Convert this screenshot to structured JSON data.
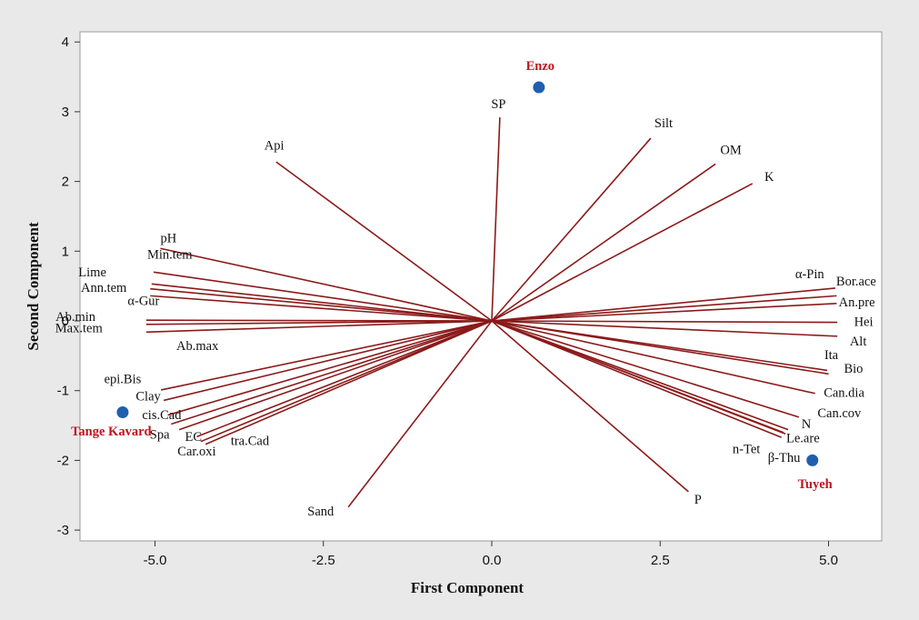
{
  "chart_data": {
    "type": "scatter",
    "subtype": "biplot",
    "xlabel": "First Component",
    "ylabel": "Second Component",
    "xlim": [
      -6.1,
      5.6
    ],
    "ylim": [
      -3.2,
      4.2
    ],
    "xticks": [
      "-5.0",
      "-2.5",
      "0.0",
      "2.5",
      "5.0"
    ],
    "yticks": [
      "-3",
      "-2",
      "-1",
      "0",
      "1",
      "2",
      "3",
      "4"
    ],
    "grid": false,
    "colors": {
      "background": "#e9e9e9",
      "plot_area": "#ffffff",
      "vector": "#8b1a1a",
      "point": "#1f5fae",
      "point_label": "#c0141c"
    },
    "vectors": [
      {
        "name": "SP",
        "x": 0.12,
        "y": 2.92
      },
      {
        "name": "Silt",
        "x": 2.36,
        "y": 2.62
      },
      {
        "name": "OM",
        "x": 3.32,
        "y": 2.25
      },
      {
        "name": "K",
        "x": 3.87,
        "y": 1.97
      },
      {
        "name": "Api",
        "x": -3.2,
        "y": 2.28
      },
      {
        "name": "pH",
        "x": -4.92,
        "y": 1.04
      },
      {
        "name": "Min.tem",
        "x": -5.02,
        "y": 0.7
      },
      {
        "name": "Lime",
        "x": -5.05,
        "y": 0.53
      },
      {
        "name": "Ann.tem",
        "x": -5.07,
        "y": 0.46
      },
      {
        "name": "α-Gur",
        "x": -5.07,
        "y": 0.36
      },
      {
        "name": "Ab.min",
        "x": -5.13,
        "y": 0.01
      },
      {
        "name": "Max.tem",
        "x": -5.13,
        "y": -0.05
      },
      {
        "name": "Ab.max",
        "x": -5.13,
        "y": -0.16
      },
      {
        "name": "epi.Bis",
        "x": -4.91,
        "y": -0.99
      },
      {
        "name": "Clay",
        "x": -4.87,
        "y": -1.14
      },
      {
        "name": "cis.Cad",
        "x": -4.81,
        "y": -1.35
      },
      {
        "name": "cis.Cad",
        "x": -4.76,
        "y": -1.48
      },
      {
        "name": "Spa",
        "x": -4.64,
        "y": -1.56
      },
      {
        "name": "EC",
        "x": -4.38,
        "y": -1.66
      },
      {
        "name": "tra.Cad",
        "x": -4.32,
        "y": -1.73
      },
      {
        "name": "Car.oxi",
        "x": -4.25,
        "y": -1.77
      },
      {
        "name": "Sand",
        "x": -2.13,
        "y": -2.67
      },
      {
        "name": "P",
        "x": 2.92,
        "y": -2.45
      },
      {
        "name": "α-Pin",
        "x": 5.1,
        "y": 0.47
      },
      {
        "name": "Bor.ace",
        "x": 5.12,
        "y": 0.36
      },
      {
        "name": "An.pre",
        "x": 5.12,
        "y": 0.25
      },
      {
        "name": "Hei",
        "x": 5.13,
        "y": -0.02
      },
      {
        "name": "Alt",
        "x": 5.13,
        "y": -0.22
      },
      {
        "name": "Ita",
        "x": 4.98,
        "y": -0.71
      },
      {
        "name": "Bio",
        "x": 5.0,
        "y": -0.76
      },
      {
        "name": "Can.dia",
        "x": 4.8,
        "y": -1.04
      },
      {
        "name": "Can.cov",
        "x": 4.56,
        "y": -1.38
      },
      {
        "name": "N",
        "x": 4.4,
        "y": -1.56
      },
      {
        "name": "Le.are",
        "x": 4.36,
        "y": -1.62
      },
      {
        "name": "β-Thu",
        "x": 4.33,
        "y": -1.6
      },
      {
        "name": "n-Tet",
        "x": 4.3,
        "y": -1.67
      }
    ],
    "variable_labels": [
      {
        "text": "SP",
        "x": 0.1,
        "y": 3.05
      },
      {
        "text": "Silt",
        "x": 2.55,
        "y": 2.78
      },
      {
        "text": "OM",
        "x": 3.55,
        "y": 2.39
      },
      {
        "text": "K",
        "x": 4.12,
        "y": 2.01
      },
      {
        "text": "Api",
        "x": -3.23,
        "y": 2.46
      },
      {
        "text": "pH",
        "x": -4.8,
        "y": 1.13
      },
      {
        "text": "Min.tem",
        "x": -4.78,
        "y": 0.89
      },
      {
        "text": "Lime",
        "x": -5.93,
        "y": 0.64
      },
      {
        "text": "Ann.tem",
        "x": -5.76,
        "y": 0.42
      },
      {
        "text": "α-Gur",
        "x": -5.17,
        "y": 0.23
      },
      {
        "text": "Ab.min",
        "x": -6.18,
        "y": 0.0
      },
      {
        "text": "Max.tem",
        "x": -6.13,
        "y": -0.16
      },
      {
        "text": "Ab.max",
        "x": -4.37,
        "y": -0.42
      },
      {
        "text": "epi.Bis",
        "x": -5.48,
        "y": -0.89
      },
      {
        "text": "Clay",
        "x": -5.1,
        "y": -1.14
      },
      {
        "text": "cis.Cad",
        "x": -4.9,
        "y": -1.41
      },
      {
        "text": "Spa",
        "x": -4.93,
        "y": -1.69
      },
      {
        "text": "EC",
        "x": -4.43,
        "y": -1.72
      },
      {
        "text": "tra.Cad",
        "x": -3.59,
        "y": -1.78
      },
      {
        "text": "Car.oxi",
        "x": -4.38,
        "y": -1.93
      },
      {
        "text": "Sand",
        "x": -2.54,
        "y": -2.79
      },
      {
        "text": "P",
        "x": 3.06,
        "y": -2.62
      },
      {
        "text": "α-Pin",
        "x": 4.72,
        "y": 0.61
      },
      {
        "text": "Bor.ace",
        "x": 5.41,
        "y": 0.51
      },
      {
        "text": "An.pre",
        "x": 5.42,
        "y": 0.21
      },
      {
        "text": "Hei",
        "x": 5.52,
        "y": -0.07
      },
      {
        "text": "Alt",
        "x": 5.44,
        "y": -0.35
      },
      {
        "text": "Ita",
        "x": 5.04,
        "y": -0.55
      },
      {
        "text": "Bio",
        "x": 5.37,
        "y": -0.74
      },
      {
        "text": "Can.dia",
        "x": 5.23,
        "y": -1.09
      },
      {
        "text": "Can.cov",
        "x": 5.16,
        "y": -1.38
      },
      {
        "text": "N",
        "x": 4.67,
        "y": -1.54
      },
      {
        "text": "Le.are",
        "x": 4.62,
        "y": -1.74
      },
      {
        "text": "n-Tet",
        "x": 3.78,
        "y": -1.9
      },
      {
        "text": "β-Thu",
        "x": 4.34,
        "y": -2.02
      }
    ],
    "observations": [
      {
        "name": "Enzo",
        "x": 0.7,
        "y": 3.35,
        "label_x": 0.72,
        "label_y": 3.6,
        "anchor": "middle"
      },
      {
        "name": "Tange Kavard",
        "x": -5.48,
        "y": -1.31,
        "label_x": -5.65,
        "label_y": -1.64,
        "anchor": "middle"
      },
      {
        "name": "Tuyeh",
        "x": 4.76,
        "y": -2.0,
        "label_x": 4.8,
        "label_y": -2.4,
        "anchor": "middle"
      }
    ]
  }
}
